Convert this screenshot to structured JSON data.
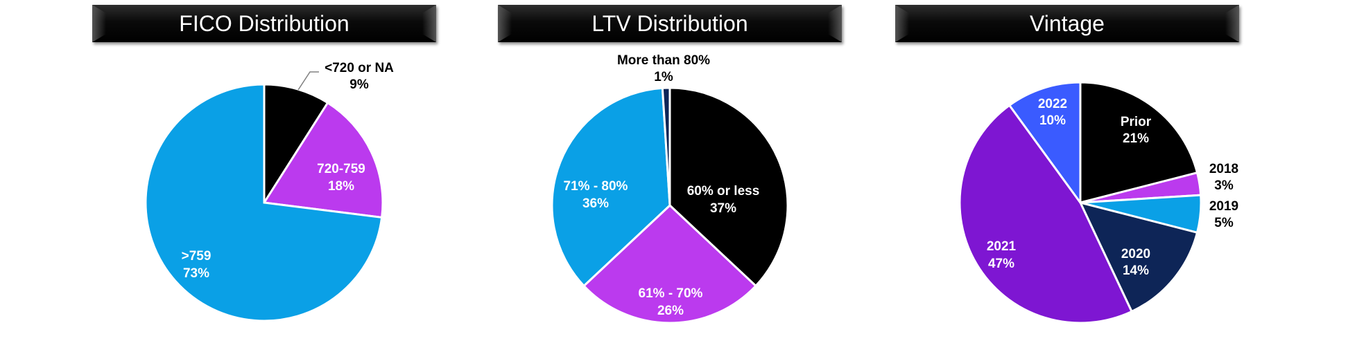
{
  "chart_data": [
    {
      "type": "pie",
      "title": "FICO Distribution",
      "colors": {
        "banner_bg": "#000000",
        "banner_text": "#ffffff"
      },
      "slices": [
        {
          "label": "<720 or NA",
          "value": 9,
          "display": "9%",
          "color": "#000000",
          "label_color": "#000000"
        },
        {
          "label": "720-759",
          "value": 18,
          "display": "18%",
          "color": "#BB3AEE",
          "label_color": "#ffffff"
        },
        {
          "label": ">759",
          "value": 73,
          "display": "73%",
          "color": "#0AA0E6",
          "label_color": "#ffffff"
        }
      ]
    },
    {
      "type": "pie",
      "title": "LTV Distribution",
      "slices": [
        {
          "label": "60% or less",
          "value": 37,
          "display": "37%",
          "color": "#000000",
          "label_color": "#ffffff"
        },
        {
          "label": "61% - 70%",
          "value": 26,
          "display": "26%",
          "color": "#BB3AEE",
          "label_color": "#ffffff"
        },
        {
          "label": "71% - 80%",
          "value": 36,
          "display": "36%",
          "color": "#0AA0E6",
          "label_color": "#ffffff"
        },
        {
          "label": "More than 80%",
          "value": 1,
          "display": "1%",
          "color": "#0E2557",
          "label_color": "#000000"
        }
      ]
    },
    {
      "type": "pie",
      "title": "Vintage",
      "slices": [
        {
          "label": "Prior",
          "value": 21,
          "display": "21%",
          "color": "#000000",
          "label_color": "#ffffff"
        },
        {
          "label": "2018",
          "value": 3,
          "display": "3%",
          "color": "#BB3AEE",
          "label_color": "#000000"
        },
        {
          "label": "2019",
          "value": 5,
          "display": "5%",
          "color": "#0AA0E6",
          "label_color": "#000000"
        },
        {
          "label": "2020",
          "value": 14,
          "display": "14%",
          "color": "#0E2557",
          "label_color": "#ffffff"
        },
        {
          "label": "2021",
          "value": 47,
          "display": "47%",
          "color": "#7E16D2",
          "label_color": "#ffffff"
        },
        {
          "label": "2022",
          "value": 10,
          "display": "10%",
          "color": "#3A5BFF",
          "label_color": "#ffffff"
        }
      ]
    }
  ]
}
